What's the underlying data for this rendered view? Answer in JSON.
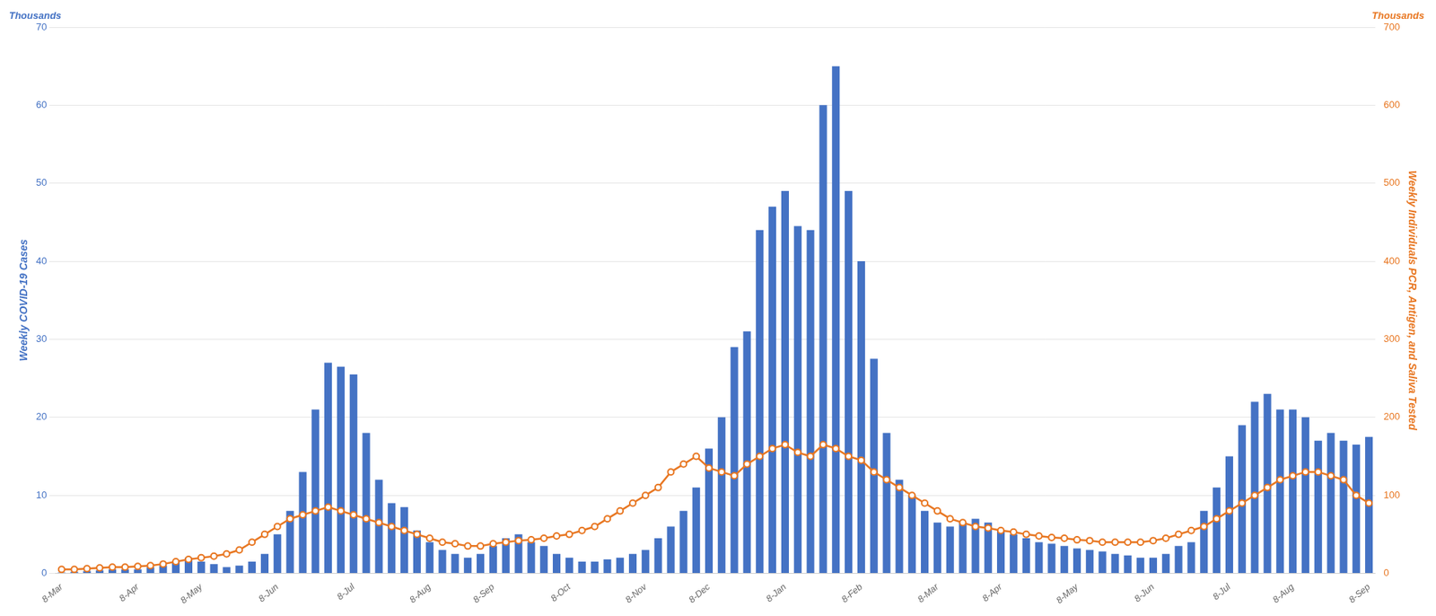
{
  "chart_data": {
    "type": "bar",
    "categories": [
      "8-Mar",
      null,
      null,
      null,
      null,
      null,
      "8-Apr",
      null,
      null,
      null,
      null,
      "8-May",
      null,
      null,
      null,
      null,
      null,
      "8-Jun",
      null,
      null,
      null,
      null,
      null,
      "8-Jul",
      null,
      null,
      null,
      null,
      null,
      "8-Aug",
      null,
      null,
      null,
      null,
      "8-Sep",
      null,
      null,
      null,
      null,
      null,
      "8-Oct",
      null,
      null,
      null,
      null,
      null,
      "8-Nov",
      null,
      null,
      null,
      null,
      "8-Dec",
      null,
      null,
      null,
      null,
      null,
      "8-Jan",
      null,
      null,
      null,
      null,
      null,
      "8-Feb",
      null,
      null,
      null,
      null,
      null,
      "8-Mar",
      null,
      null,
      null,
      null,
      "8-Apr",
      null,
      null,
      null,
      null,
      null,
      "8-May",
      null,
      null,
      null,
      null,
      null,
      "8-Jun",
      null,
      null,
      null,
      null,
      null,
      "8-Jul",
      null,
      null,
      null,
      null,
      "8-Aug",
      null,
      null,
      null,
      null,
      null,
      "8-Sep"
    ],
    "series": [
      {
        "type": "bar",
        "color": "#4472C4",
        "values": [
          0.1,
          0.2,
          0.3,
          0.4,
          0.5,
          0.5,
          0.5,
          0.8,
          1.0,
          1.5,
          2.0,
          1.5,
          1.2,
          0.8,
          1.0,
          1.5,
          2.5,
          5.0,
          8.0,
          13.0,
          21.0,
          27.0,
          26.5,
          25.5,
          18.0,
          12.0,
          9.0,
          8.5,
          5.5,
          4.0,
          3.0,
          2.5,
          2.0,
          2.5,
          3.5,
          4.5,
          5.0,
          4.0,
          3.5,
          2.5,
          2.0,
          1.5,
          1.5,
          1.8,
          2.0,
          2.5,
          3.0,
          4.5,
          6.0,
          8.0,
          11.0,
          16.0,
          20.0,
          29.0,
          31.0,
          44.0,
          47.0,
          49.0,
          44.5,
          44.0,
          60.0,
          65.0,
          49.0,
          40.0,
          27.5,
          18.0,
          12.0,
          10.0,
          8.0,
          6.5,
          6.0,
          6.5,
          7.0,
          6.5,
          5.5,
          5.0,
          4.5,
          4.0,
          3.8,
          3.5,
          3.2,
          3.0,
          2.8,
          2.5,
          2.3,
          2.0,
          2.0,
          2.5,
          3.5,
          4.0,
          8.0,
          11.0,
          15.0,
          19.0,
          22.0,
          23.0,
          21.0,
          21.0,
          20.0,
          17.0,
          18.0,
          17.0,
          16.5,
          17.5
        ]
      },
      {
        "type": "line",
        "color": "#E87722",
        "marker": "circle",
        "axis": "y2",
        "values": [
          5,
          5,
          6,
          7,
          8,
          8,
          9,
          10,
          12,
          15,
          18,
          20,
          22,
          25,
          30,
          40,
          50,
          60,
          70,
          75,
          80,
          85,
          80,
          75,
          70,
          65,
          60,
          55,
          50,
          45,
          40,
          38,
          35,
          35,
          38,
          40,
          42,
          43,
          45,
          48,
          50,
          55,
          60,
          70,
          80,
          90,
          100,
          110,
          130,
          140,
          150,
          135,
          130,
          125,
          140,
          150,
          160,
          165,
          155,
          150,
          165,
          160,
          150,
          145,
          130,
          120,
          110,
          100,
          90,
          80,
          70,
          65,
          60,
          58,
          55,
          53,
          50,
          48,
          46,
          45,
          43,
          42,
          40,
          40,
          40,
          40,
          42,
          45,
          50,
          55,
          60,
          70,
          80,
          90,
          100,
          110,
          120,
          125,
          130,
          130,
          125,
          120,
          100,
          90
        ]
      }
    ],
    "ylabel": "Weekly COVID-19 Cases",
    "y2label": "Weekly Individuals PCR, Antigen, and Saliva Tested",
    "annotations": [
      {
        "text": "Thousands",
        "axis": "y"
      },
      {
        "text": "Thousands",
        "axis": "y2"
      }
    ],
    "ylim": [
      0,
      70
    ],
    "yticks": [
      0,
      10,
      20,
      30,
      40,
      50,
      60,
      70
    ],
    "y2lim": [
      0,
      700
    ],
    "y2ticks": [
      0,
      100,
      200,
      300,
      400,
      500,
      600,
      700
    ],
    "grid": true
  }
}
